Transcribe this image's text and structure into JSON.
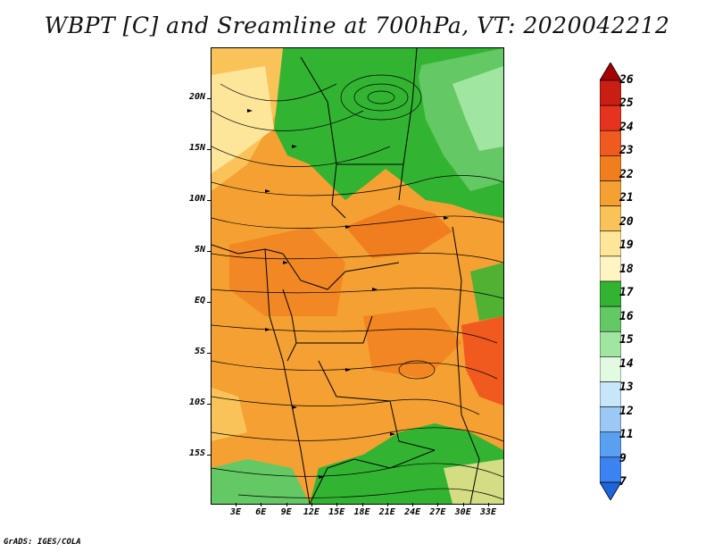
{
  "title": "WBPT [C] and Sreamline at 700hPa, VT: 2020042212",
  "credit": "GrADS: IGES/COLA",
  "map": {
    "lat_labels": [
      "20N",
      "15N",
      "10N",
      "5N",
      "EQ",
      "5S",
      "10S",
      "15S"
    ],
    "lon_labels": [
      "3E",
      "6E",
      "9E",
      "12E",
      "15E",
      "18E",
      "21E",
      "24E",
      "27E",
      "30E",
      "33E"
    ]
  },
  "colorbar": {
    "labels": [
      "26",
      "25",
      "24",
      "23",
      "22",
      "21",
      "20",
      "19",
      "18",
      "17",
      "16",
      "15",
      "14",
      "13",
      "12",
      "11",
      "9",
      "7"
    ],
    "colors": [
      "#a50000",
      "#c81e14",
      "#e6321e",
      "#f05a1e",
      "#f07d1e",
      "#f5a032",
      "#fac35a",
      "#fde699",
      "#fff5c3",
      "#32b432",
      "#64c864",
      "#a0e6a0",
      "#e1fae1",
      "#c8e6fa",
      "#9bc8f5",
      "#5aa0f0",
      "#3c82f0",
      "#1e64dc"
    ]
  }
}
